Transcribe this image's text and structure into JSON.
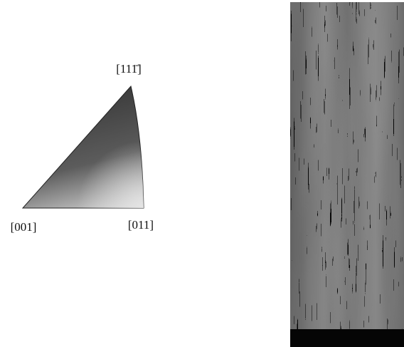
{
  "ipf_triangle": {
    "labels": {
      "top": "[111̄]",
      "left": "[001]",
      "right": "[011]"
    }
  }
}
